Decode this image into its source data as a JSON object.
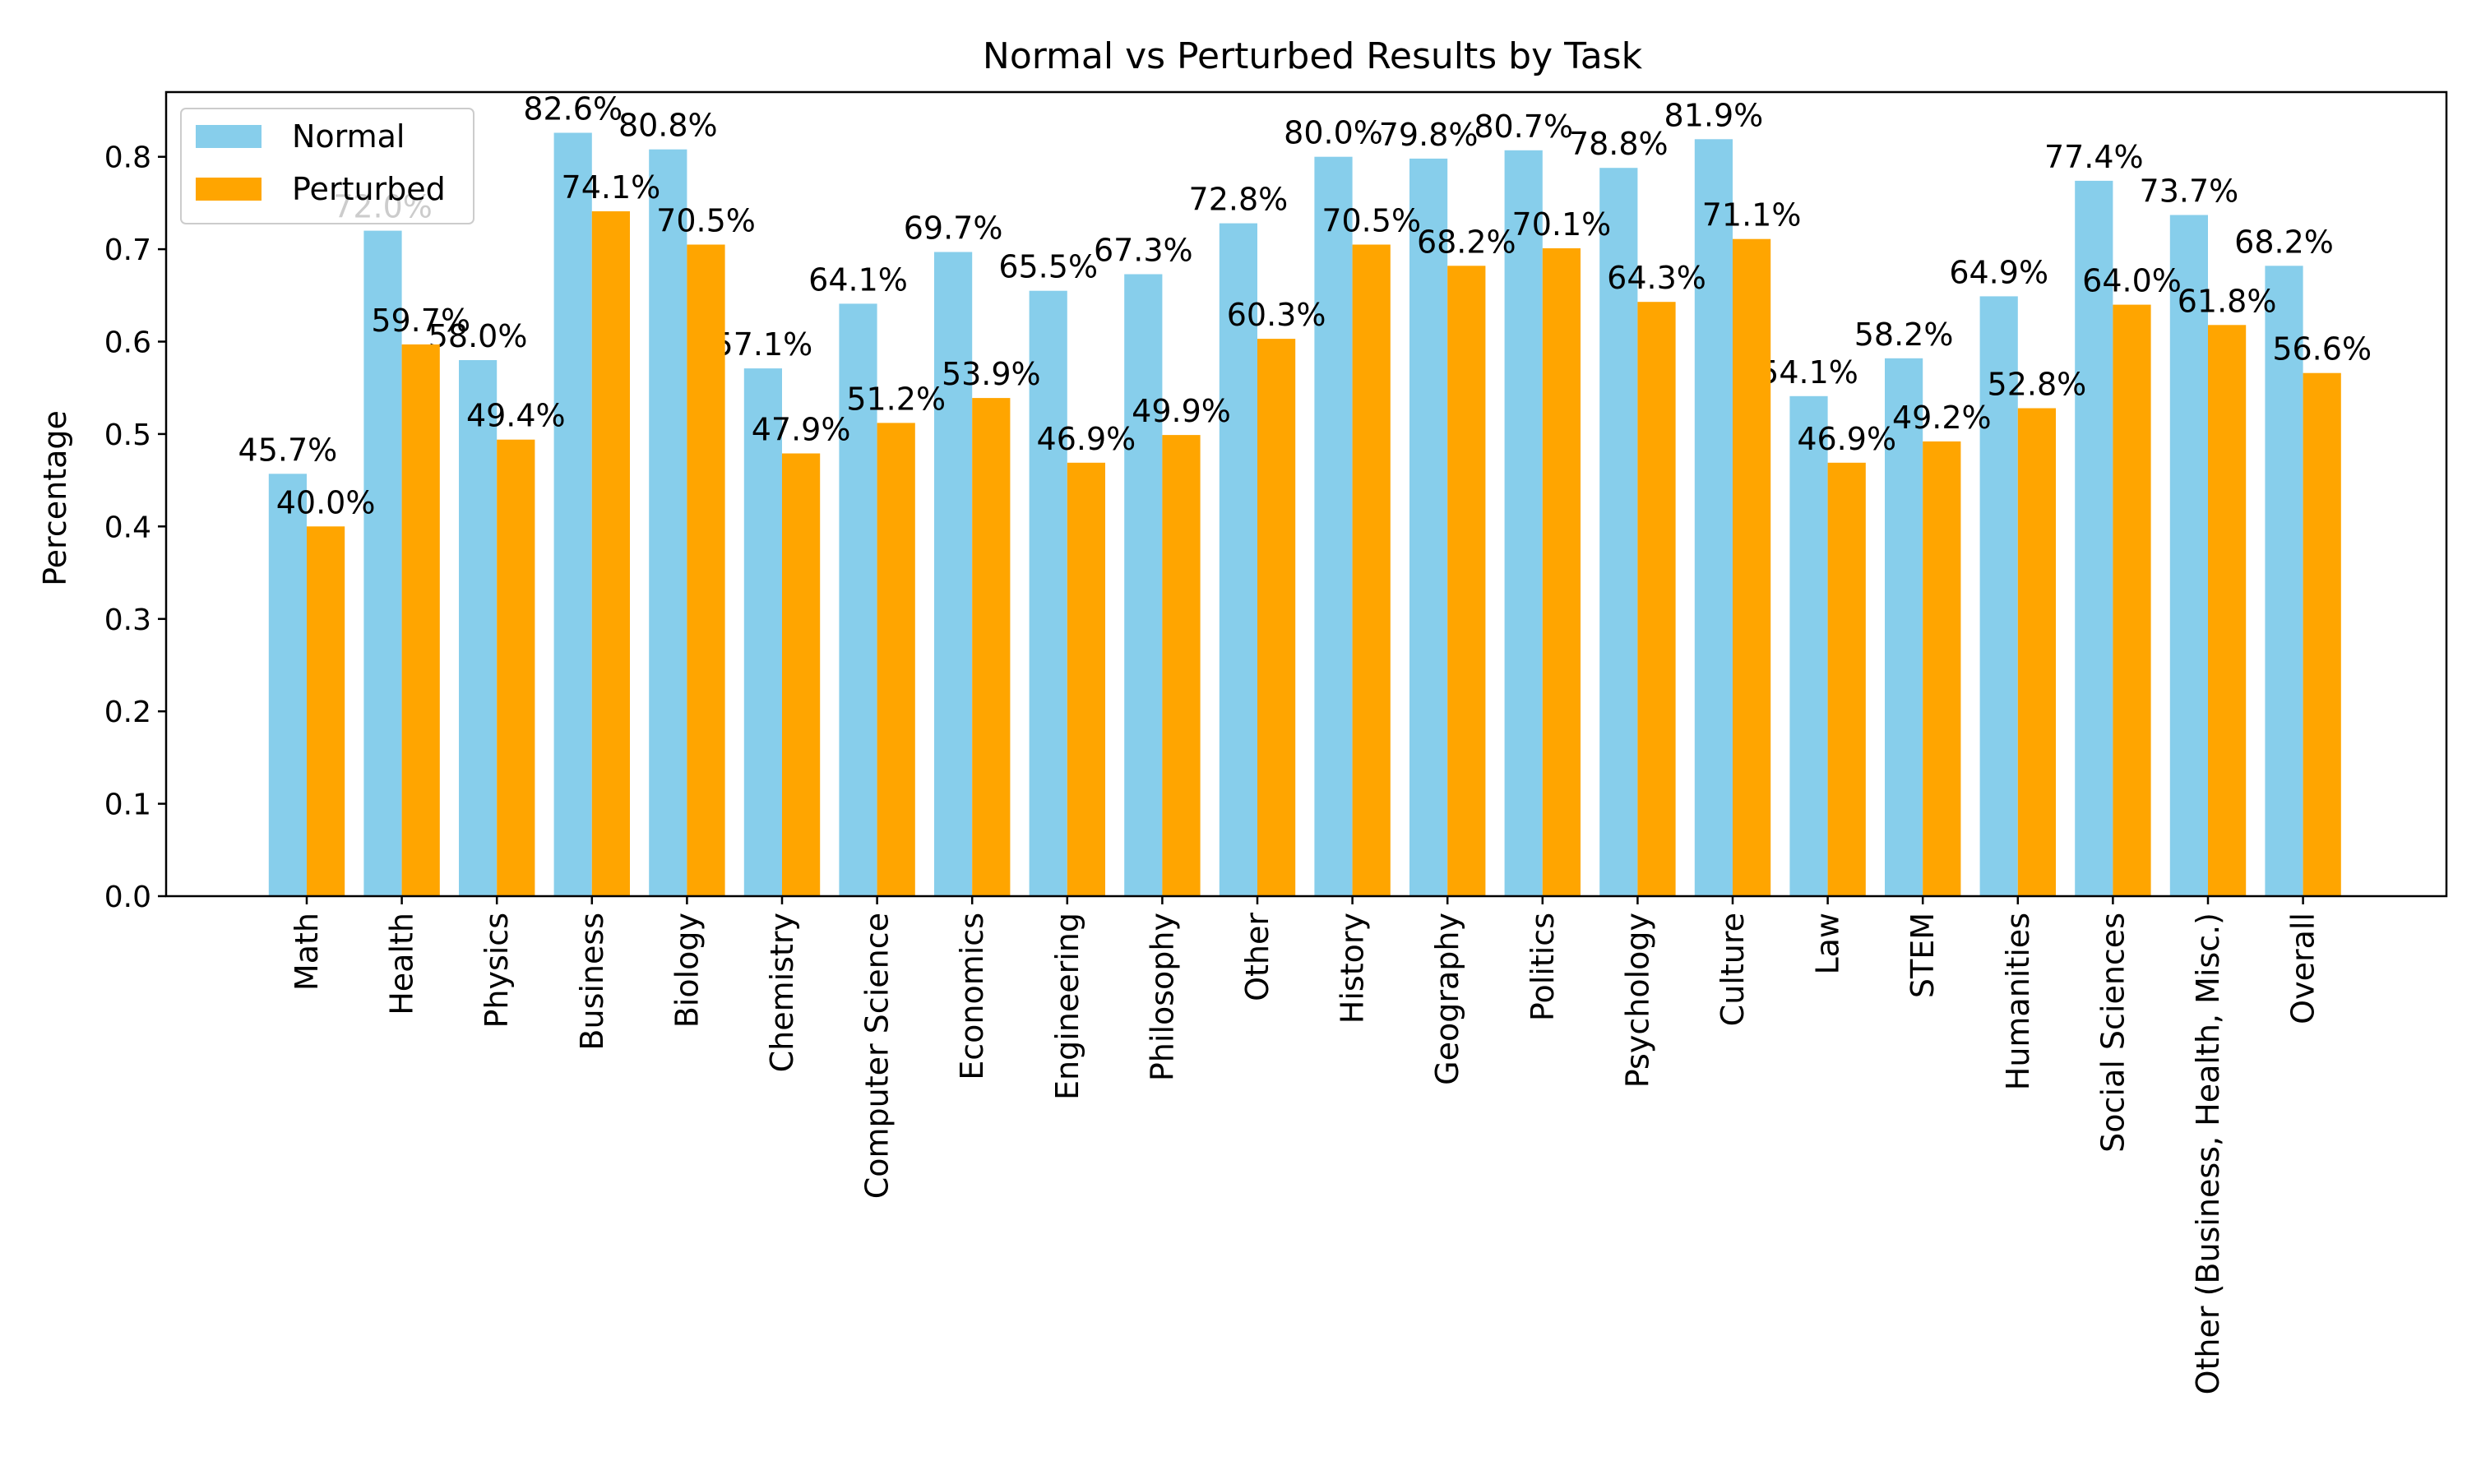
{
  "chart_data": {
    "type": "bar",
    "title": "Normal vs Perturbed Results by Task",
    "xlabel": "",
    "ylabel": "Percentage",
    "ylim": [
      0,
      0.87
    ],
    "yticks": [
      0.0,
      0.1,
      0.2,
      0.3,
      0.4,
      0.5,
      0.6,
      0.7,
      0.8
    ],
    "ytick_labels": [
      "0.0",
      "0.1",
      "0.2",
      "0.3",
      "0.4",
      "0.5",
      "0.6",
      "0.7",
      "0.8"
    ],
    "grid": false,
    "legend_position": "upper-left",
    "categories": [
      "Math",
      "Health",
      "Physics",
      "Business",
      "Biology",
      "Chemistry",
      "Computer Science",
      "Economics",
      "Engineering",
      "Philosophy",
      "Other",
      "History",
      "Geography",
      "Politics",
      "Psychology",
      "Culture",
      "Law",
      "STEM",
      "Humanities",
      "Social Sciences",
      "Other (Business, Health, Misc.)",
      "Overall"
    ],
    "series": [
      {
        "name": "Normal",
        "color": "#87CEEB",
        "values": [
          0.457,
          0.72,
          0.58,
          0.826,
          0.808,
          0.571,
          0.641,
          0.697,
          0.655,
          0.673,
          0.728,
          0.8,
          0.798,
          0.807,
          0.788,
          0.819,
          0.541,
          0.582,
          0.649,
          0.774,
          0.737,
          0.682
        ],
        "labels": [
          "45.7%",
          "72.0%",
          "58.0%",
          "82.6%",
          "80.8%",
          "57.1%",
          "64.1%",
          "69.7%",
          "65.5%",
          "67.3%",
          "72.8%",
          "80.0%",
          "79.8%",
          "80.7%",
          "78.8%",
          "81.9%",
          "54.1%",
          "58.2%",
          "64.9%",
          "77.4%",
          "73.7%",
          "68.2%"
        ]
      },
      {
        "name": "Perturbed",
        "color": "#FFA500",
        "values": [
          0.4,
          0.597,
          0.494,
          0.741,
          0.705,
          0.479,
          0.512,
          0.539,
          0.469,
          0.499,
          0.603,
          0.705,
          0.682,
          0.701,
          0.643,
          0.711,
          0.469,
          0.492,
          0.528,
          0.64,
          0.618,
          0.566
        ],
        "labels": [
          "40.0%",
          "59.7%",
          "49.4%",
          "74.1%",
          "70.5%",
          "47.9%",
          "51.2%",
          "53.9%",
          "46.9%",
          "49.9%",
          "60.3%",
          "70.5%",
          "68.2%",
          "70.1%",
          "64.3%",
          "71.1%",
          "46.9%",
          "49.2%",
          "52.8%",
          "64.0%",
          "61.8%",
          "56.6%"
        ]
      }
    ]
  }
}
